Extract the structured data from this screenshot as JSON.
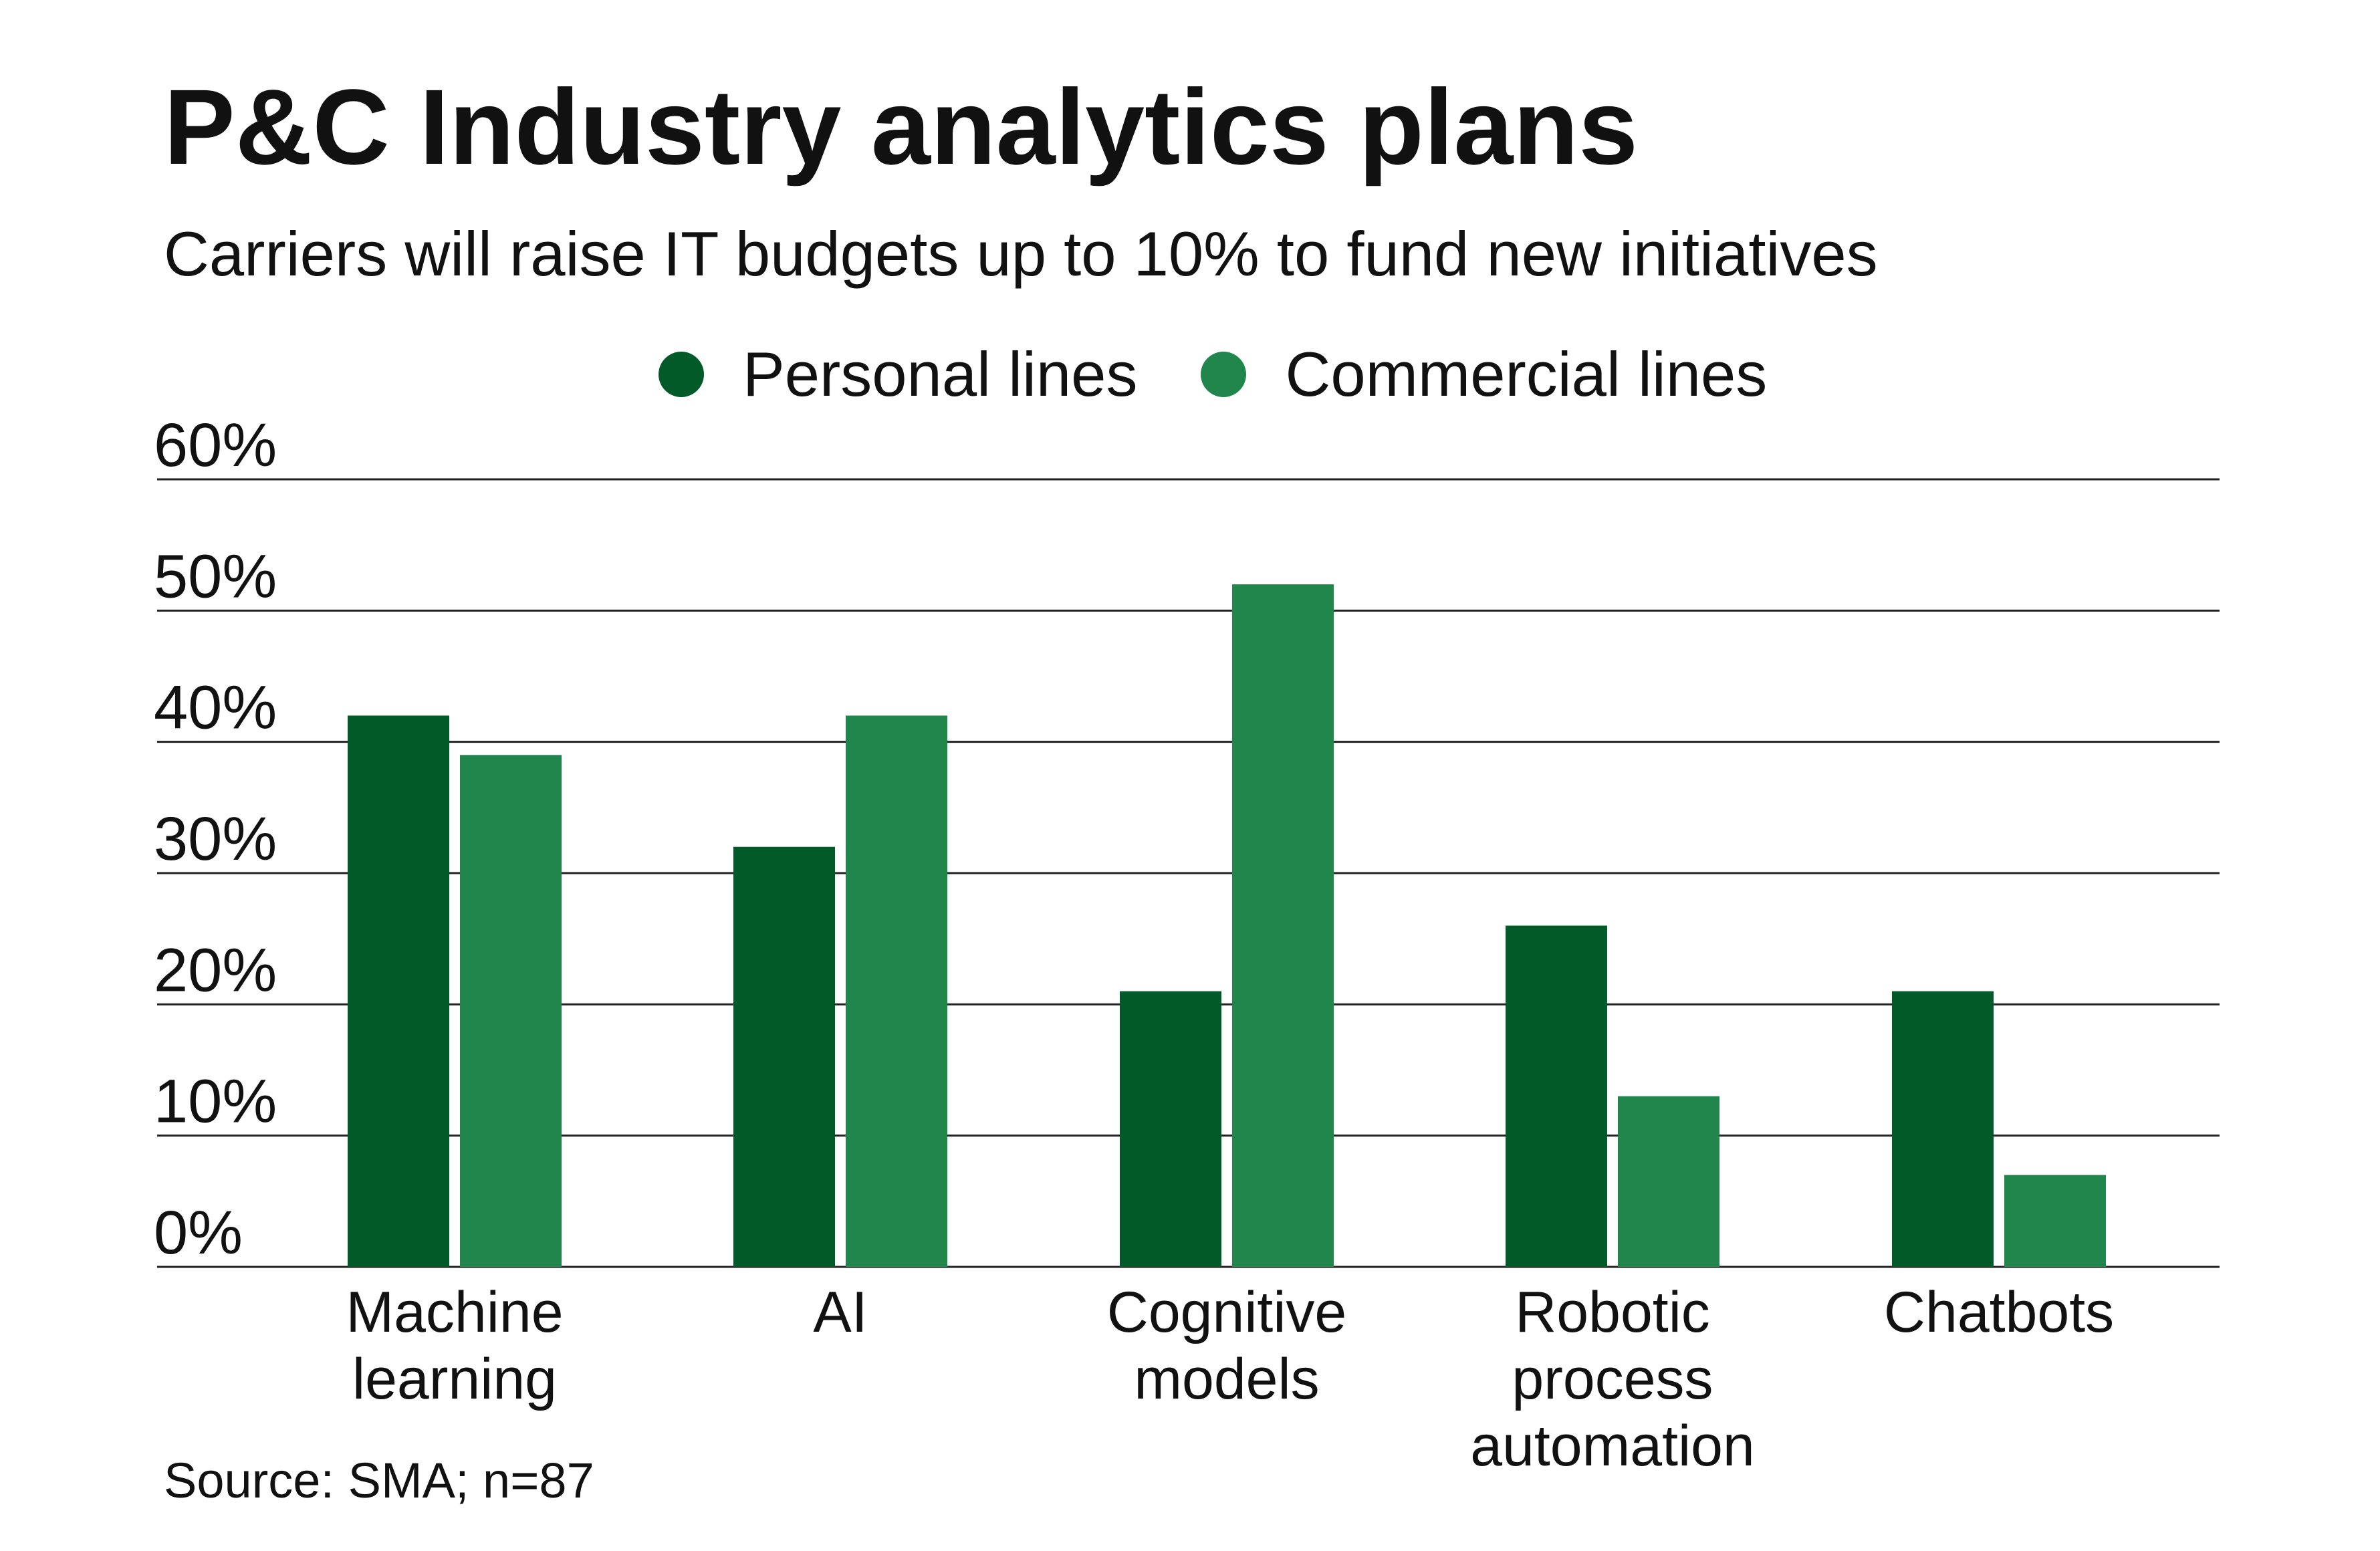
{
  "title": "P&C Industry analytics plans",
  "subtitle": "Carriers will raise IT budgets up to 10% to fund new initiatives",
  "source": "Source: SMA; n=87",
  "colors": {
    "personal": "#035a29",
    "commercial": "#20864b",
    "grid": "#222222",
    "text": "#111111"
  },
  "chart_data": {
    "type": "bar",
    "categories": [
      [
        "Machine",
        "learning"
      ],
      [
        "AI"
      ],
      [
        "Cognitive",
        "models"
      ],
      [
        "Robotic",
        "process",
        "automation"
      ],
      [
        "Chatbots"
      ]
    ],
    "series": [
      {
        "name": "Personal lines",
        "values": [
          42,
          32,
          21,
          26,
          21
        ]
      },
      {
        "name": "Commercial lines",
        "values": [
          39,
          42,
          52,
          13,
          7
        ]
      }
    ],
    "y_ticks": [
      "60%",
      "50%",
      "40%",
      "30%",
      "20%",
      "10%",
      "0%"
    ],
    "ylim": [
      0,
      60
    ],
    "grid": true,
    "legend_position": "top-center"
  }
}
